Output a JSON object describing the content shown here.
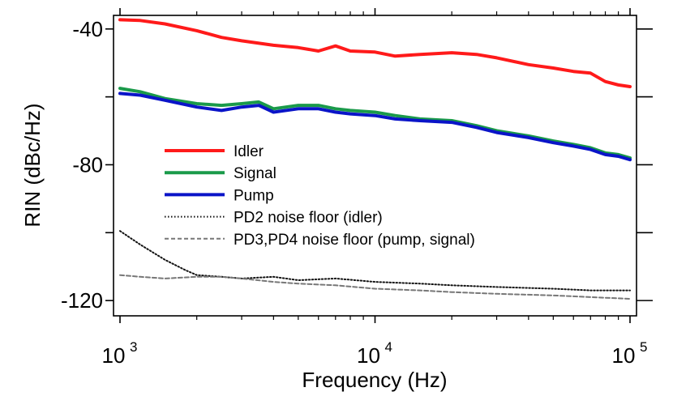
{
  "chart_data": {
    "type": "line",
    "xlabel": "Frequency (Hz)",
    "ylabel": "RIN (dBc/Hz)",
    "x_scale": "log",
    "xlim": [
      1000,
      100000
    ],
    "ylim": [
      -124.5,
      -36
    ],
    "x_ticks": [
      {
        "value": 1000,
        "base": "10",
        "exp": "3"
      },
      {
        "value": 10000,
        "base": "10",
        "exp": "4"
      },
      {
        "value": 100000,
        "base": "10",
        "exp": "5"
      }
    ],
    "y_tick_labels": [
      {
        "value": -40,
        "label": "-40"
      },
      {
        "value": -80,
        "label": "-80"
      },
      {
        "value": -120,
        "label": "-120"
      }
    ],
    "y_minor_ticks": [
      -60,
      -100
    ],
    "legend_position": "center-left",
    "series": [
      {
        "name": "Idler",
        "color": "#ff1a1a",
        "style": "solid",
        "x": [
          1000,
          1200,
          1500,
          2000,
          2500,
          3000,
          4000,
          5000,
          6000,
          7000,
          8000,
          10000,
          12000,
          15000,
          20000,
          25000,
          30000,
          40000,
          50000,
          60000,
          70000,
          80000,
          90000,
          100000
        ],
        "y": [
          -37.3,
          -37.5,
          -38.5,
          -40.5,
          -42.5,
          -43.5,
          -44.8,
          -45.5,
          -46.5,
          -45.0,
          -46.5,
          -46.8,
          -48.0,
          -47.5,
          -47.0,
          -47.5,
          -48.5,
          -50.5,
          -51.5,
          -52.5,
          -53.0,
          -55.5,
          -56.5,
          -57.0
        ]
      },
      {
        "name": "Signal",
        "color": "#1a9a4a",
        "style": "solid",
        "x": [
          1000,
          1200,
          1500,
          2000,
          2500,
          3000,
          3500,
          4000,
          5000,
          6000,
          7000,
          8000,
          10000,
          12000,
          15000,
          20000,
          25000,
          30000,
          40000,
          50000,
          60000,
          70000,
          80000,
          90000,
          100000
        ],
        "y": [
          -57.5,
          -58.5,
          -60.5,
          -62.0,
          -62.5,
          -62.0,
          -61.5,
          -63.5,
          -62.5,
          -62.5,
          -63.5,
          -64.0,
          -64.5,
          -65.5,
          -66.5,
          -67.0,
          -68.5,
          -70.0,
          -71.5,
          -73.0,
          -74.0,
          -75.0,
          -76.5,
          -77.0,
          -78.0
        ]
      },
      {
        "name": "Pump",
        "color": "#0a14c8",
        "style": "solid",
        "x": [
          1000,
          1200,
          1500,
          2000,
          2500,
          3000,
          3500,
          4000,
          5000,
          6000,
          7000,
          8000,
          10000,
          12000,
          15000,
          20000,
          25000,
          30000,
          40000,
          50000,
          60000,
          70000,
          80000,
          90000,
          100000
        ],
        "y": [
          -59.0,
          -59.5,
          -61.0,
          -63.0,
          -64.0,
          -63.0,
          -62.5,
          -64.5,
          -63.5,
          -63.5,
          -64.5,
          -65.0,
          -65.5,
          -66.5,
          -67.0,
          -67.5,
          -69.0,
          -70.5,
          -72.0,
          -73.5,
          -74.5,
          -75.5,
          -77.0,
          -77.5,
          -78.5
        ]
      },
      {
        "name": "PD2 noise floor (idler)",
        "color": "#111111",
        "style": "dotted",
        "x": [
          1000,
          1200,
          1500,
          1800,
          2000,
          2500,
          3000,
          4000,
          5000,
          7000,
          10000,
          15000,
          20000,
          30000,
          50000,
          70000,
          100000
        ],
        "y": [
          -99.5,
          -103.5,
          -108.0,
          -111.0,
          -112.5,
          -113.0,
          -113.5,
          -113.0,
          -114.0,
          -113.5,
          -114.5,
          -115.0,
          -115.5,
          -116.0,
          -116.5,
          -117.0,
          -117.0
        ]
      },
      {
        "name": "PD3,PD4 noise floor (pump, signal)",
        "color": "#777777",
        "style": "dashed",
        "x": [
          1000,
          1200,
          1500,
          2000,
          2500,
          3000,
          4000,
          5000,
          7000,
          10000,
          15000,
          20000,
          30000,
          50000,
          70000,
          100000
        ],
        "y": [
          -112.5,
          -113.0,
          -113.5,
          -113.0,
          -113.0,
          -113.5,
          -114.5,
          -115.0,
          -115.5,
          -116.5,
          -117.0,
          -117.5,
          -118.0,
          -118.5,
          -119.0,
          -119.5
        ]
      }
    ]
  }
}
